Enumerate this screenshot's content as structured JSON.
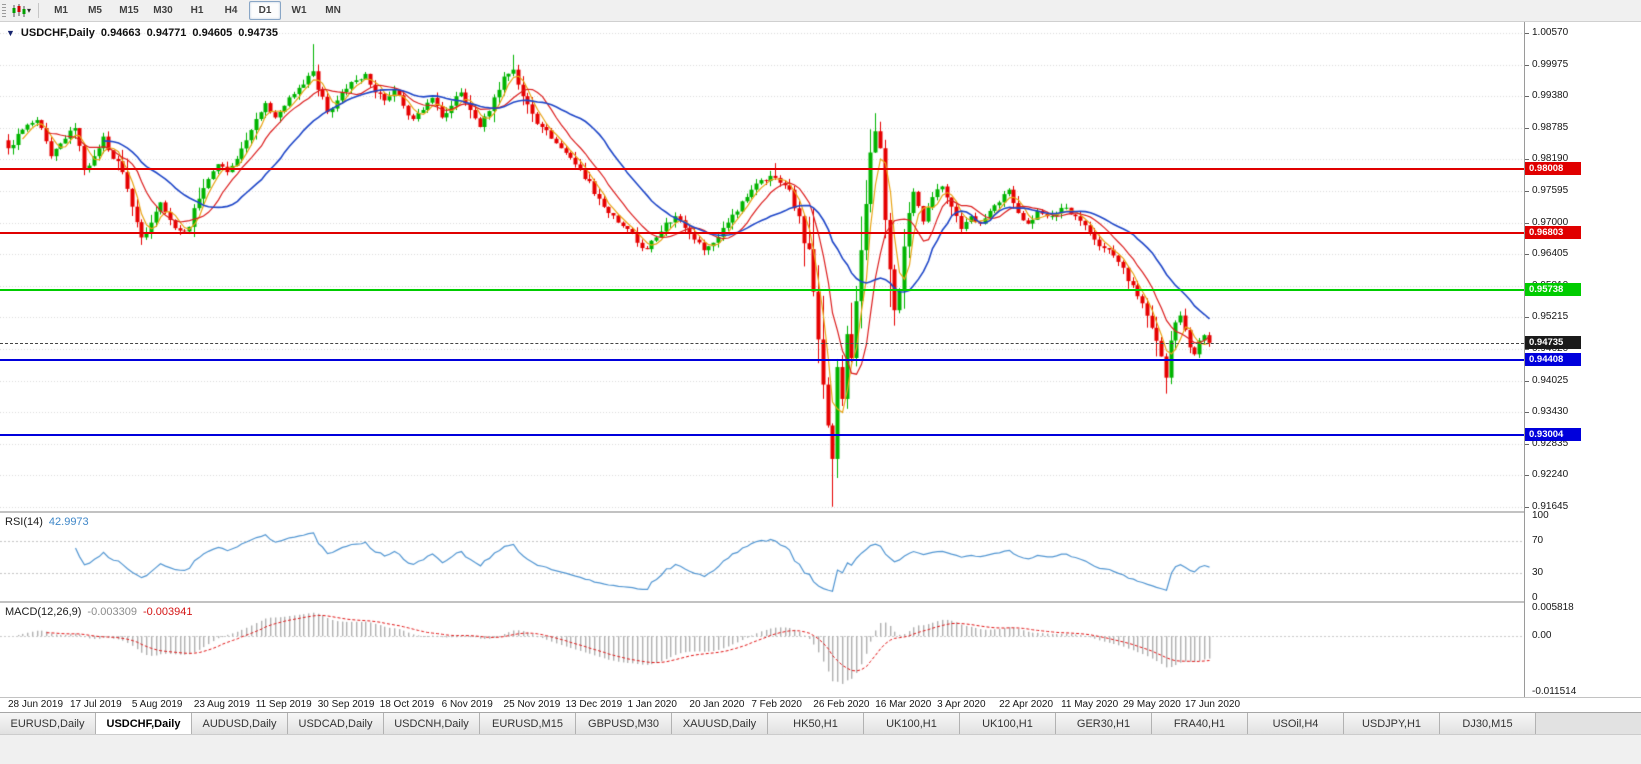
{
  "toolbar": {
    "timeframes": [
      {
        "label": "M1",
        "active": false
      },
      {
        "label": "M5",
        "active": false
      },
      {
        "label": "M15",
        "active": false
      },
      {
        "label": "M30",
        "active": false
      },
      {
        "label": "H1",
        "active": false
      },
      {
        "label": "H4",
        "active": false
      },
      {
        "label": "D1",
        "active": true
      },
      {
        "label": "W1",
        "active": false
      },
      {
        "label": "MN",
        "active": false
      }
    ]
  },
  "chart_data": {
    "type": "candlestick",
    "symbol_title": "USDCHF,Daily",
    "ohlc_display": {
      "open": "0.94663",
      "high": "0.94771",
      "low": "0.94605",
      "close": "0.94735"
    },
    "price_axis": {
      "top": 1.0057,
      "bottom": 0.91645,
      "tick_labels": [
        "1.00570",
        "0.99975",
        "0.99380",
        "0.98785",
        "0.98190",
        "0.97595",
        "0.97000",
        "0.96405",
        "0.95810",
        "0.95215",
        "0.94620",
        "0.94025",
        "0.93430",
        "0.92835",
        "0.92240",
        "0.91645"
      ]
    },
    "x_labels": [
      "28 Jun 2019",
      "17 Jul 2019",
      "5 Aug 2019",
      "23 Aug 2019",
      "11 Sep 2019",
      "30 Sep 2019",
      "18 Oct 2019",
      "6 Nov 2019",
      "25 Nov 2019",
      "13 Dec 2019",
      "1 Jan 2020",
      "20 Jan 2020",
      "7 Feb 2020",
      "26 Feb 2020",
      "16 Mar 2020",
      "3 Apr 2020",
      "22 Apr 2020",
      "11 May 2020",
      "29 May 2020",
      "17 Jun 2020"
    ],
    "bars_per_label": 13,
    "num_bars": 253,
    "candle_colors": {
      "up": "#00b400",
      "down": "#e60000"
    },
    "horizontal_lines": [
      {
        "price": 0.98008,
        "label": "0.98008",
        "color": "#e00000",
        "style": "solid",
        "current_price": false
      },
      {
        "price": 0.96803,
        "label": "0.96803",
        "color": "#e00000",
        "style": "solid",
        "current_price": false
      },
      {
        "price": 0.95738,
        "label": "0.95738",
        "color": "#00cc00",
        "style": "solid",
        "current_price": false
      },
      {
        "price": 0.94735,
        "label": "0.94735",
        "color": "#1a1a1a",
        "style": "dotted",
        "current_price": true
      },
      {
        "price": 0.94408,
        "label": "0.94408",
        "color": "#0000dc",
        "style": "solid",
        "current_price": false
      },
      {
        "price": 0.93004,
        "label": "0.93004",
        "color": "#0000dc",
        "style": "solid",
        "current_price": false
      }
    ],
    "close_anchors": [
      [
        0,
        0.984
      ],
      [
        3,
        0.9875
      ],
      [
        6,
        0.9893
      ],
      [
        9,
        0.9825
      ],
      [
        12,
        0.9858
      ],
      [
        14,
        0.9878
      ],
      [
        16,
        0.98
      ],
      [
        18,
        0.9825
      ],
      [
        20,
        0.9862
      ],
      [
        22,
        0.982
      ],
      [
        24,
        0.9795
      ],
      [
        26,
        0.973
      ],
      [
        28,
        0.9672
      ],
      [
        30,
        0.97
      ],
      [
        32,
        0.9738
      ],
      [
        34,
        0.9705
      ],
      [
        36,
        0.9685
      ],
      [
        38,
        0.9692
      ],
      [
        40,
        0.9745
      ],
      [
        42,
        0.9782
      ],
      [
        44,
        0.981
      ],
      [
        46,
        0.9795
      ],
      [
        48,
        0.982
      ],
      [
        50,
        0.9855
      ],
      [
        52,
        0.9895
      ],
      [
        54,
        0.9925
      ],
      [
        56,
        0.9898
      ],
      [
        58,
        0.992
      ],
      [
        60,
        0.9942
      ],
      [
        62,
        0.996
      ],
      [
        64,
        0.9985
      ],
      [
        65,
        0.995
      ],
      [
        67,
        0.9908
      ],
      [
        69,
        0.993
      ],
      [
        71,
        0.9952
      ],
      [
        73,
        0.9968
      ],
      [
        75,
        0.998
      ],
      [
        77,
        0.9945
      ],
      [
        79,
        0.993
      ],
      [
        81,
        0.995
      ],
      [
        83,
        0.992
      ],
      [
        85,
        0.9895
      ],
      [
        87,
        0.9912
      ],
      [
        89,
        0.9935
      ],
      [
        91,
        0.9898
      ],
      [
        93,
        0.992
      ],
      [
        95,
        0.9945
      ],
      [
        97,
        0.9912
      ],
      [
        99,
        0.988
      ],
      [
        101,
        0.991
      ],
      [
        103,
        0.995
      ],
      [
        104,
        0.9975
      ],
      [
        106,
        0.9988
      ],
      [
        108,
        0.9938
      ],
      [
        110,
        0.9905
      ],
      [
        112,
        0.988
      ],
      [
        114,
        0.9858
      ],
      [
        116,
        0.984
      ],
      [
        118,
        0.9822
      ],
      [
        120,
        0.98
      ],
      [
        122,
        0.9778
      ],
      [
        124,
        0.9745
      ],
      [
        126,
        0.9718
      ],
      [
        128,
        0.97
      ],
      [
        130,
        0.9688
      ],
      [
        132,
        0.9662
      ],
      [
        134,
        0.965
      ],
      [
        136,
        0.9672
      ],
      [
        138,
        0.97
      ],
      [
        140,
        0.9712
      ],
      [
        142,
        0.969
      ],
      [
        144,
        0.9668
      ],
      [
        146,
        0.9648
      ],
      [
        148,
        0.9662
      ],
      [
        150,
        0.969
      ],
      [
        152,
        0.9715
      ],
      [
        154,
        0.974
      ],
      [
        156,
        0.9762
      ],
      [
        158,
        0.978
      ],
      [
        160,
        0.9788
      ],
      [
        162,
        0.9775
      ],
      [
        164,
        0.9762
      ],
      [
        166,
        0.9712
      ],
      [
        168,
        0.965
      ],
      [
        169,
        0.957
      ],
      [
        170,
        0.948
      ],
      [
        171,
        0.9395
      ],
      [
        172,
        0.9318
      ],
      [
        173,
        0.9255
      ],
      [
        174,
        0.9428
      ],
      [
        175,
        0.9368
      ],
      [
        176,
        0.949
      ],
      [
        177,
        0.9445
      ],
      [
        178,
        0.9552
      ],
      [
        179,
        0.9648
      ],
      [
        180,
        0.9735
      ],
      [
        181,
        0.9832
      ],
      [
        182,
        0.9872
      ],
      [
        183,
        0.984
      ],
      [
        184,
        0.9705
      ],
      [
        185,
        0.9612
      ],
      [
        186,
        0.9535
      ],
      [
        187,
        0.9572
      ],
      [
        188,
        0.9655
      ],
      [
        189,
        0.9718
      ],
      [
        190,
        0.9758
      ],
      [
        192,
        0.9702
      ],
      [
        194,
        0.9748
      ],
      [
        196,
        0.9768
      ],
      [
        198,
        0.973
      ],
      [
        200,
        0.9688
      ],
      [
        202,
        0.9712
      ],
      [
        204,
        0.9698
      ],
      [
        206,
        0.9722
      ],
      [
        208,
        0.9738
      ],
      [
        210,
        0.9762
      ],
      [
        212,
        0.9718
      ],
      [
        214,
        0.9698
      ],
      [
        216,
        0.9722
      ],
      [
        218,
        0.9712
      ],
      [
        220,
        0.9718
      ],
      [
        222,
        0.9728
      ],
      [
        224,
        0.9712
      ],
      [
        226,
        0.9695
      ],
      [
        228,
        0.9668
      ],
      [
        230,
        0.9652
      ],
      [
        232,
        0.9638
      ],
      [
        234,
        0.9615
      ],
      [
        236,
        0.9582
      ],
      [
        238,
        0.9548
      ],
      [
        240,
        0.9502
      ],
      [
        242,
        0.9448
      ],
      [
        243,
        0.9408
      ],
      [
        244,
        0.9478
      ],
      [
        245,
        0.9512
      ],
      [
        246,
        0.9525
      ],
      [
        247,
        0.9498
      ],
      [
        248,
        0.9465
      ],
      [
        249,
        0.9452
      ],
      [
        250,
        0.9478
      ],
      [
        251,
        0.9488
      ],
      [
        252,
        0.94735
      ]
    ],
    "wick_overrides": [
      [
        28,
        "low",
        0.9658
      ],
      [
        64,
        "high",
        1.0036
      ],
      [
        106,
        "high",
        1.0016
      ],
      [
        161,
        "high",
        0.9812
      ],
      [
        173,
        "low",
        0.9165
      ],
      [
        182,
        "high",
        0.9906
      ],
      [
        186,
        "low",
        0.9506
      ],
      [
        243,
        "low",
        0.9378
      ]
    ],
    "moving_averages": [
      {
        "period": 4,
        "color": "#e8a414"
      },
      {
        "period": 9,
        "color": "#dc1e1e"
      },
      {
        "period": 21,
        "color": "#1e46c8"
      }
    ],
    "indicators": {
      "rsi": {
        "name": "RSI(14)",
        "value": "42.9973",
        "period": 14,
        "color": "#5296d2",
        "levels": [
          70,
          30
        ],
        "scale_labels": [
          "100",
          "70",
          "30",
          "0"
        ],
        "scale_values": [
          100,
          70,
          30,
          0
        ],
        "range": [
          0,
          100
        ]
      },
      "macd": {
        "name": "MACD(12,26,9)",
        "macd_value": "-0.003309",
        "signal_value": "-0.003941",
        "fast": 12,
        "slow": 26,
        "signal": 9,
        "histogram_color": "#b0b0b0",
        "signal_color": "#e01414",
        "scale_labels": [
          "0.005818",
          "0.00",
          "-0.011514"
        ],
        "scale_values": [
          0.005818,
          0,
          -0.011514
        ],
        "range": [
          -0.011514,
          0.005818
        ]
      }
    }
  },
  "tabs": [
    {
      "label": "EURUSD,Daily",
      "active": false
    },
    {
      "label": "USDCHF,Daily",
      "active": true
    },
    {
      "label": "AUDUSD,Daily",
      "active": false
    },
    {
      "label": "USDCAD,Daily",
      "active": false
    },
    {
      "label": "USDCNH,Daily",
      "active": false
    },
    {
      "label": "EURUSD,M15",
      "active": false
    },
    {
      "label": "GBPUSD,M30",
      "active": false
    },
    {
      "label": "XAUUSD,Daily",
      "active": false
    },
    {
      "label": "HK50,H1",
      "active": false
    },
    {
      "label": "UK100,H1",
      "active": false
    },
    {
      "label": "UK100,H1",
      "active": false
    },
    {
      "label": "GER30,H1",
      "active": false
    },
    {
      "label": "FRA40,H1",
      "active": false
    },
    {
      "label": "USOil,H4",
      "active": false
    },
    {
      "label": "USDJPY,H1",
      "active": false
    },
    {
      "label": "DJ30,M15",
      "active": false
    }
  ]
}
